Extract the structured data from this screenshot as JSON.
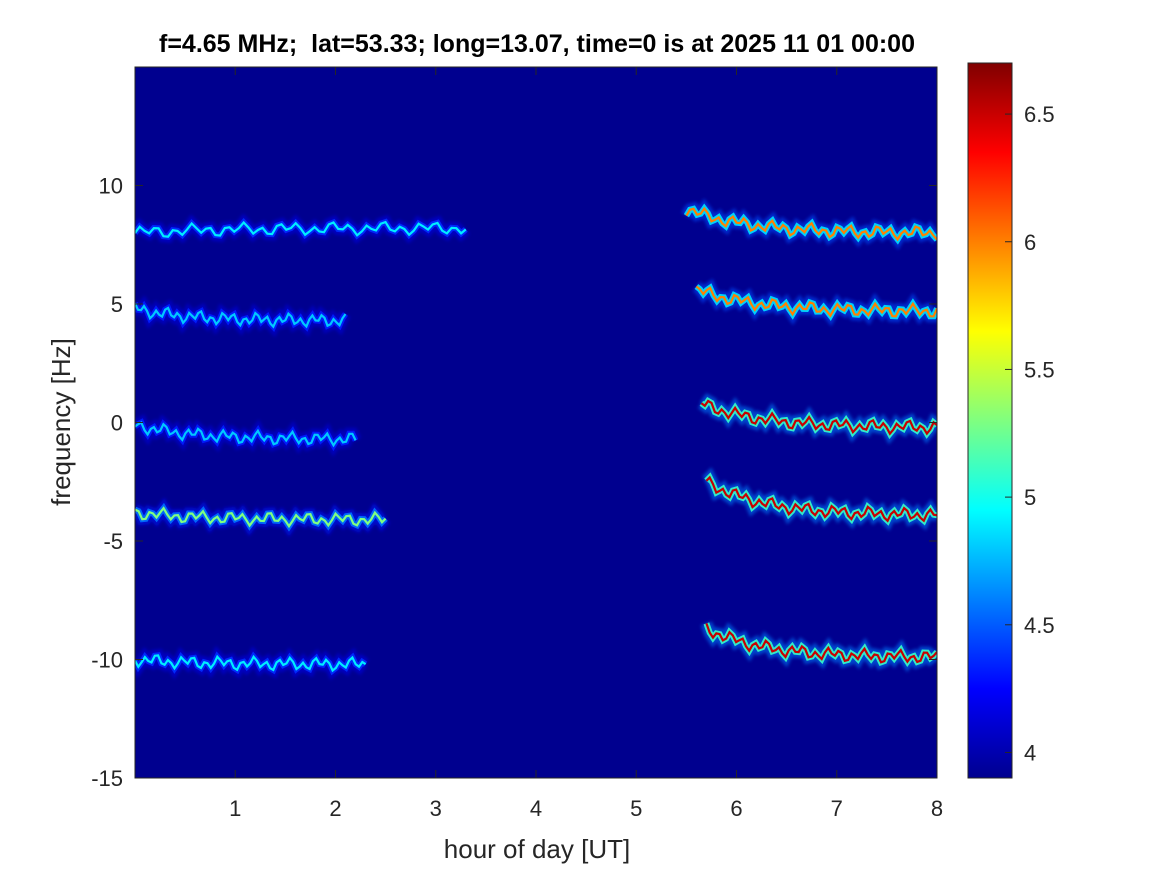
{
  "chart_data": {
    "type": "heatmap",
    "title": "f=4.65 MHz;  lat=53.33; long=13.07, time=0 is at 2025 11 01 00:00",
    "xlabel": "hour of day [UT]",
    "ylabel": "frequency [Hz]",
    "xlim": [
      0,
      8
    ],
    "ylim": [
      -15,
      15
    ],
    "x_ticks": [
      1,
      2,
      3,
      4,
      5,
      6,
      7,
      8
    ],
    "y_ticks": [
      -15,
      -10,
      -5,
      0,
      5,
      10
    ],
    "colorbar": {
      "range": [
        3.9,
        6.7
      ],
      "ticks": [
        4,
        4.5,
        5,
        5.5,
        6,
        6.5
      ],
      "colormap": "jet"
    },
    "background_value": 3.95,
    "colors": {
      "background": "#00008f",
      "frame": "#262626"
    },
    "traces": [
      {
        "t_start": 0.0,
        "t_end": 3.3,
        "freq_start": 8.0,
        "freq_end": 8.2,
        "peak": 4.9
      },
      {
        "t_start": 0.0,
        "t_end": 2.1,
        "freq_start": 4.8,
        "freq_end": 4.3,
        "peak": 4.8
      },
      {
        "t_start": 0.0,
        "t_end": 2.2,
        "freq_start": -0.1,
        "freq_end": -0.7,
        "peak": 4.8
      },
      {
        "t_start": 0.0,
        "t_end": 2.5,
        "freq_start": -3.8,
        "freq_end": -4.1,
        "peak": 5.3
      },
      {
        "t_start": 0.0,
        "t_end": 2.3,
        "freq_start": -10.0,
        "freq_end": -10.2,
        "peak": 4.9
      },
      {
        "t_start": 5.5,
        "t_end": 8.0,
        "freq_start": 9.0,
        "freq_end": 8.0,
        "peak": 6.0
      },
      {
        "t_start": 5.6,
        "t_end": 8.0,
        "freq_start": 5.6,
        "freq_end": 4.7,
        "peak": 6.0
      },
      {
        "t_start": 5.65,
        "t_end": 8.0,
        "freq_start": 0.8,
        "freq_end": -0.2,
        "peak": 6.5
      },
      {
        "t_start": 5.7,
        "t_end": 8.0,
        "freq_start": -2.5,
        "freq_end": -3.9,
        "peak": 6.5
      },
      {
        "t_start": 5.7,
        "t_end": 8.0,
        "freq_start": -8.7,
        "freq_end": -9.9,
        "peak": 6.5
      }
    ]
  }
}
